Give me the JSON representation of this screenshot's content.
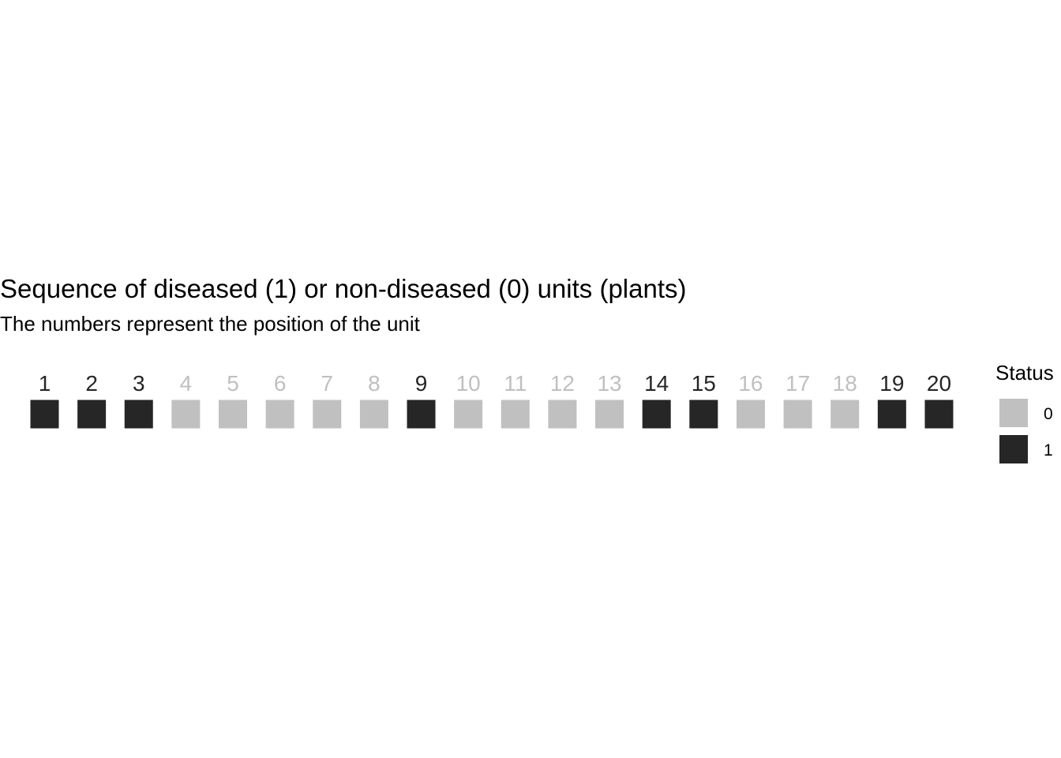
{
  "chart_data": {
    "type": "heatmap",
    "title": "Sequence of diseased (1) or non-diseased (0) units (plants)",
    "subtitle": "The numbers represent the position of the unit",
    "units": [
      {
        "position": "1",
        "status": 1
      },
      {
        "position": "2",
        "status": 1
      },
      {
        "position": "3",
        "status": 1
      },
      {
        "position": "4",
        "status": 0
      },
      {
        "position": "5",
        "status": 0
      },
      {
        "position": "6",
        "status": 0
      },
      {
        "position": "7",
        "status": 0
      },
      {
        "position": "8",
        "status": 0
      },
      {
        "position": "9",
        "status": 1
      },
      {
        "position": "10",
        "status": 0
      },
      {
        "position": "11",
        "status": 0
      },
      {
        "position": "12",
        "status": 0
      },
      {
        "position": "13",
        "status": 0
      },
      {
        "position": "14",
        "status": 1
      },
      {
        "position": "15",
        "status": 1
      },
      {
        "position": "16",
        "status": 0
      },
      {
        "position": "17",
        "status": 0
      },
      {
        "position": "18",
        "status": 0
      },
      {
        "position": "19",
        "status": 1
      },
      {
        "position": "20",
        "status": 1
      }
    ],
    "legend": {
      "title": "Status",
      "position": "right",
      "entries": [
        {
          "label": "0",
          "color": "#c0c0c0"
        },
        {
          "label": "1",
          "color": "#262626"
        }
      ]
    },
    "colors": {
      "0": "#c0c0c0",
      "1": "#262626"
    },
    "grid": false
  }
}
